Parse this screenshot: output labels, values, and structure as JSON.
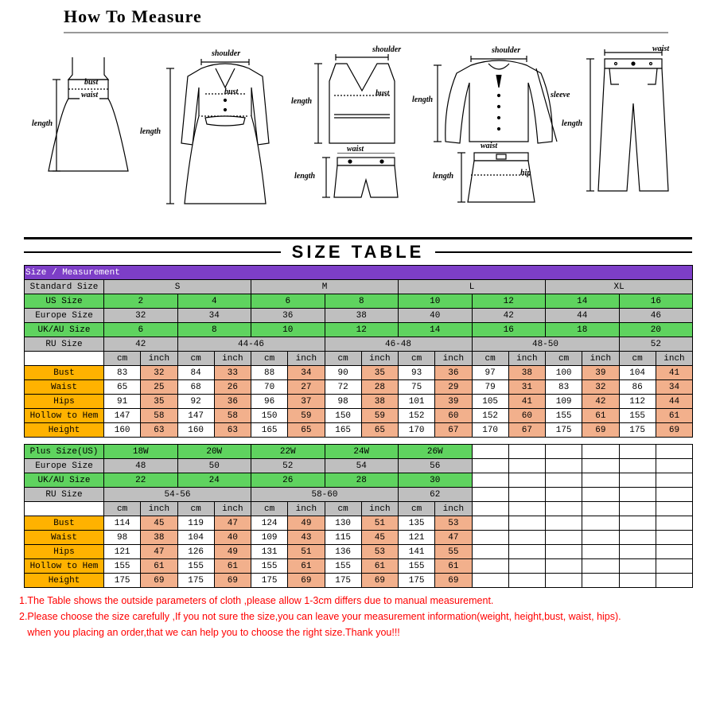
{
  "header": {
    "title": "How To Measure"
  },
  "sizeTableTitle": "SIZE TABLE",
  "labels": {
    "bust": "bust",
    "waist": "waist",
    "length": "length",
    "shoulder": "shoulder",
    "sleeve": "sleeve",
    "hip": "hip"
  },
  "table1": {
    "header": "Size / Measurement",
    "rows": {
      "standard": {
        "label": "Standard Size",
        "vals": [
          "S",
          "M",
          "L",
          "XL"
        ]
      },
      "us": {
        "label": "US Size",
        "vals": [
          "2",
          "4",
          "6",
          "8",
          "10",
          "12",
          "14",
          "16"
        ]
      },
      "eu": {
        "label": "Europe Size",
        "vals": [
          "32",
          "34",
          "36",
          "38",
          "40",
          "42",
          "44",
          "46"
        ]
      },
      "ukau": {
        "label": "UK/AU Size",
        "vals": [
          "6",
          "8",
          "10",
          "12",
          "14",
          "16",
          "18",
          "20"
        ]
      },
      "ru": {
        "label": "RU Size",
        "vals": [
          "42",
          "44-46",
          "46-48",
          "48-50",
          "52"
        ]
      },
      "unit": {
        "vals": [
          "cm",
          "inch",
          "cm",
          "inch",
          "cm",
          "inch",
          "cm",
          "inch",
          "cm",
          "inch",
          "cm",
          "inch",
          "cm",
          "inch",
          "cm",
          "inch"
        ]
      },
      "bust": {
        "label": "Bust",
        "vals": [
          "83",
          "32",
          "84",
          "33",
          "88",
          "34",
          "90",
          "35",
          "93",
          "36",
          "97",
          "38",
          "100",
          "39",
          "104",
          "41"
        ]
      },
      "waist": {
        "label": "Waist",
        "vals": [
          "65",
          "25",
          "68",
          "26",
          "70",
          "27",
          "72",
          "28",
          "75",
          "29",
          "79",
          "31",
          "83",
          "32",
          "86",
          "34"
        ]
      },
      "hips": {
        "label": "Hips",
        "vals": [
          "91",
          "35",
          "92",
          "36",
          "96",
          "37",
          "98",
          "38",
          "101",
          "39",
          "105",
          "41",
          "109",
          "42",
          "112",
          "44"
        ]
      },
      "hollow": {
        "label": "Hollow to Hem",
        "vals": [
          "147",
          "58",
          "147",
          "58",
          "150",
          "59",
          "150",
          "59",
          "152",
          "60",
          "152",
          "60",
          "155",
          "61",
          "155",
          "61"
        ]
      },
      "height": {
        "label": "Height",
        "vals": [
          "160",
          "63",
          "160",
          "63",
          "165",
          "65",
          "165",
          "65",
          "170",
          "67",
          "170",
          "67",
          "175",
          "69",
          "175",
          "69"
        ]
      }
    }
  },
  "table2": {
    "rows": {
      "plus": {
        "label": "Plus Size(US)",
        "vals": [
          "18W",
          "20W",
          "22W",
          "24W",
          "26W"
        ]
      },
      "eu": {
        "label": "Europe Size",
        "vals": [
          "48",
          "50",
          "52",
          "54",
          "56"
        ]
      },
      "ukau": {
        "label": "UK/AU Size",
        "vals": [
          "22",
          "24",
          "26",
          "28",
          "30"
        ]
      },
      "ru": {
        "label": "RU Size",
        "vals": [
          "54-56",
          "58-60",
          "62"
        ]
      },
      "unit": {
        "vals": [
          "cm",
          "inch",
          "cm",
          "inch",
          "cm",
          "inch",
          "cm",
          "inch",
          "cm",
          "inch"
        ]
      },
      "bust": {
        "label": "Bust",
        "vals": [
          "114",
          "45",
          "119",
          "47",
          "124",
          "49",
          "130",
          "51",
          "135",
          "53"
        ]
      },
      "waist": {
        "label": "Waist",
        "vals": [
          "98",
          "38",
          "104",
          "40",
          "109",
          "43",
          "115",
          "45",
          "121",
          "47"
        ]
      },
      "hips": {
        "label": "Hips",
        "vals": [
          "121",
          "47",
          "126",
          "49",
          "131",
          "51",
          "136",
          "53",
          "141",
          "55"
        ]
      },
      "hollow": {
        "label": "Hollow to Hem",
        "vals": [
          "155",
          "61",
          "155",
          "61",
          "155",
          "61",
          "155",
          "61",
          "155",
          "61"
        ]
      },
      "height": {
        "label": "Height",
        "vals": [
          "175",
          "69",
          "175",
          "69",
          "175",
          "69",
          "175",
          "69",
          "175",
          "69"
        ]
      }
    }
  },
  "notes": {
    "n1": "1.The Table shows the outside parameters of cloth ,please allow 1-3cm differs due to manual measurement.",
    "n2": "2.Please choose the size carefully ,If you not sure the size,you can leave your measurement information(weight, height,bust, waist, hips).",
    "n3": "   when you placing an order,that we can help you to choose the right size.Thank you!!!"
  },
  "colors": {
    "purple": "#7d3ec7",
    "grey": "#bfbfbf",
    "green": "#5fd35f",
    "orange": "#ffb200",
    "peach": "#f2b08c"
  }
}
